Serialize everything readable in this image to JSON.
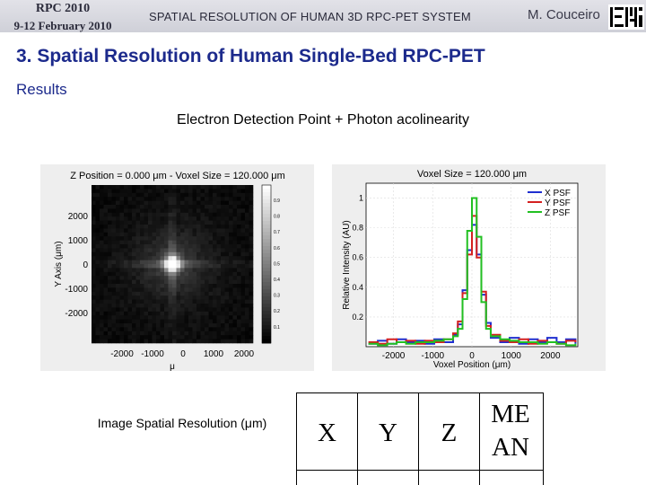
{
  "header": {
    "conference": "RPC 2010",
    "dates": "9-12 February 2010",
    "system": "SPATIAL RESOLUTION OF HUMAN 3D RPC-PET SYSTEM",
    "author": "M. Couceiro"
  },
  "slide": {
    "title": "3. Spatial Resolution of Human Single-Bed RPC-PET",
    "section": "Results",
    "caption": "Electron Detection Point + Photon acolinearity"
  },
  "image_plot": {
    "title": "Z Position = 0.000 μm - Voxel Size = 120.000 μm",
    "ylabel": "Y Axis (μm)",
    "xlabel": "μ",
    "x_ticks": [
      "-2000",
      "-1000",
      "0",
      "1000",
      "2000"
    ],
    "y_ticks": [
      "2000",
      "1000",
      "0",
      "-1000",
      "-2000"
    ],
    "colorbar_ticks": [
      "0.9",
      "0.8",
      "0.7",
      "0.6",
      "0.5",
      "0.4",
      "0.3",
      "0.2",
      "0.1"
    ]
  },
  "chart_data": {
    "type": "line",
    "title": "Voxel Size = 120.000 μm",
    "xlabel": "Voxel Position (μm)",
    "ylabel": "Relative Intensity (AU)",
    "xlim": [
      -2700,
      2700
    ],
    "ylim": [
      0,
      1.1
    ],
    "x_ticks": [
      "-2000",
      "-1000",
      "0",
      "1000",
      "2000"
    ],
    "y_ticks": [
      "1",
      "0.8",
      "0.6",
      "0.4",
      "0.2"
    ],
    "legend_position": "top-right",
    "x": [
      -2640,
      -2400,
      -2160,
      -1920,
      -1680,
      -1440,
      -1200,
      -960,
      -720,
      -480,
      -360,
      -240,
      -120,
      0,
      120,
      240,
      360,
      480,
      720,
      960,
      1200,
      1440,
      1680,
      1920,
      2160,
      2400,
      2640
    ],
    "series": [
      {
        "name": "X PSF",
        "color": "#1f2fd0",
        "values": [
          0.02,
          0.04,
          0.02,
          0.05,
          0.03,
          0.04,
          0.02,
          0.05,
          0.03,
          0.08,
          0.15,
          0.38,
          0.65,
          0.82,
          0.62,
          0.35,
          0.16,
          0.06,
          0.03,
          0.06,
          0.02,
          0.05,
          0.03,
          0.06,
          0.03,
          0.05,
          0.02
        ]
      },
      {
        "name": "Y PSF",
        "color": "#d42020",
        "values": [
          0.03,
          0.02,
          0.05,
          0.03,
          0.04,
          0.02,
          0.04,
          0.03,
          0.05,
          0.09,
          0.17,
          0.36,
          0.62,
          0.88,
          0.6,
          0.37,
          0.14,
          0.08,
          0.04,
          0.03,
          0.05,
          0.02,
          0.04,
          0.03,
          0.02,
          0.04,
          0.03
        ]
      },
      {
        "name": "Z PSF",
        "color": "#22c022",
        "values": [
          0.02,
          0.01,
          0.02,
          0.03,
          0.02,
          0.03,
          0.03,
          0.04,
          0.05,
          0.07,
          0.12,
          0.32,
          0.78,
          1.0,
          0.74,
          0.3,
          0.12,
          0.07,
          0.05,
          0.04,
          0.03,
          0.03,
          0.02,
          0.03,
          0.02,
          0.01,
          0.02
        ]
      }
    ]
  },
  "results_table": {
    "row_label": "Image Spatial Resolution (μm)",
    "columns": [
      "X",
      "Y",
      "Z",
      "ME AN"
    ]
  }
}
